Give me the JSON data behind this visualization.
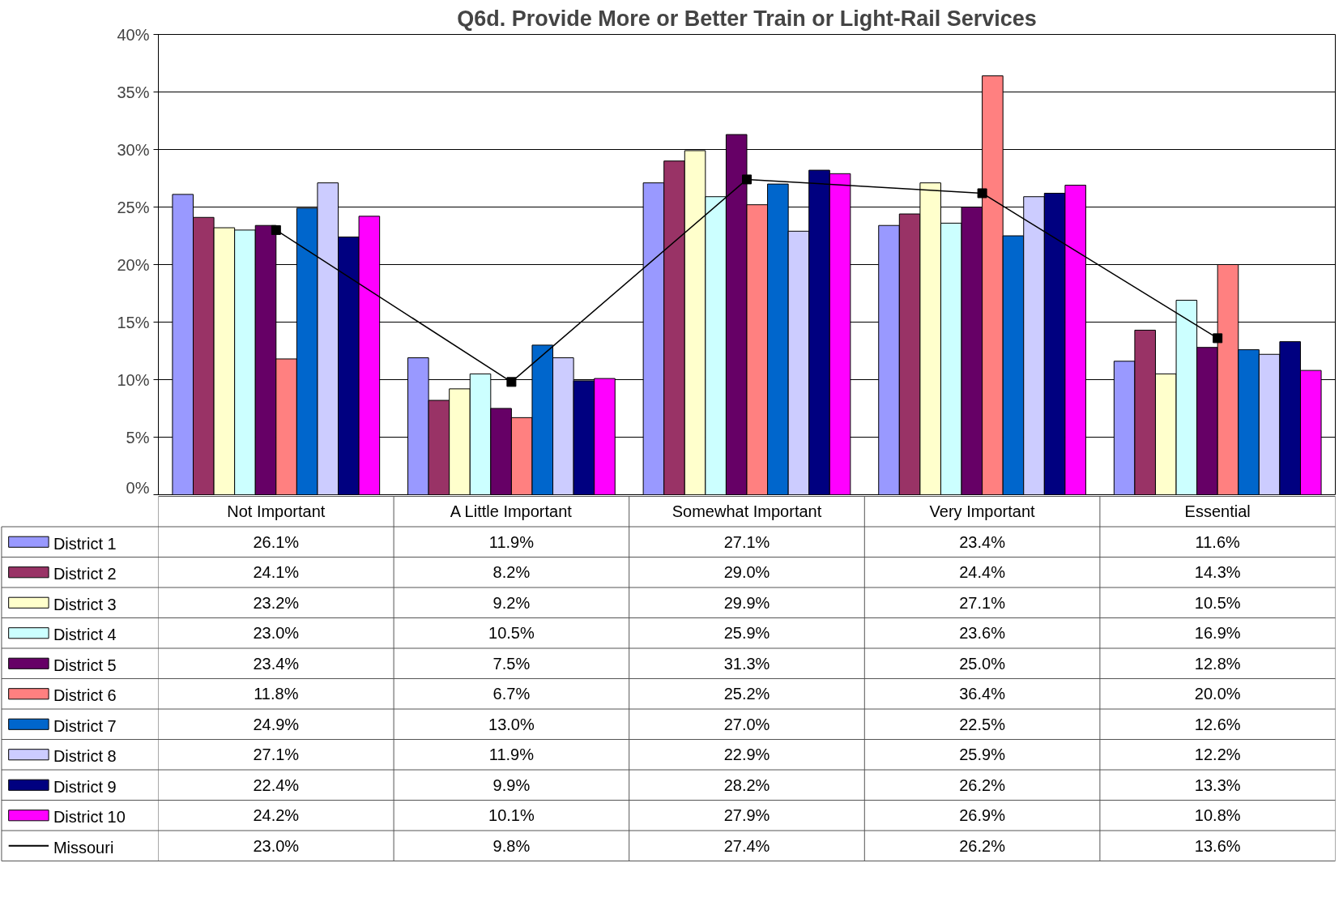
{
  "chart_data": {
    "type": "bar",
    "title": "Q6d. Provide More or Better Train or Light-Rail Services",
    "categories": [
      "Not Important",
      "A Little Important",
      "Somewhat Important",
      "Very Important",
      "Essential"
    ],
    "ylim": [
      0,
      40
    ],
    "yticks": [
      {
        "value": 0,
        "label": "0%"
      },
      {
        "value": 5,
        "label": "5%"
      },
      {
        "value": 10,
        "label": "10%"
      },
      {
        "value": 15,
        "label": "15%"
      },
      {
        "value": 20,
        "label": "20%"
      },
      {
        "value": 25,
        "label": "25%"
      },
      {
        "value": 30,
        "label": "30%"
      },
      {
        "value": 35,
        "label": "35%"
      },
      {
        "value": 40,
        "label": "40%"
      }
    ],
    "grid": "y",
    "legend": "bottom left",
    "series": [
      {
        "name": "District 1",
        "color": "#9999ff",
        "values": [
          26.1,
          11.9,
          27.1,
          23.4,
          11.6
        ],
        "value_labels": [
          "26.1%",
          "11.9%",
          "27.1%",
          "23.4%",
          "11.6%"
        ]
      },
      {
        "name": "District 2",
        "color": "#993366",
        "values": [
          24.1,
          8.2,
          29.0,
          24.4,
          14.3
        ],
        "value_labels": [
          "24.1%",
          "8.2%",
          "29.0%",
          "24.4%",
          "14.3%"
        ]
      },
      {
        "name": "District 3",
        "color": "#ffffcc",
        "values": [
          23.2,
          9.2,
          29.9,
          27.1,
          10.5
        ],
        "value_labels": [
          "23.2%",
          "9.2%",
          "29.9%",
          "27.1%",
          "10.5%"
        ]
      },
      {
        "name": "District 4",
        "color": "#ccffff",
        "values": [
          23.0,
          10.5,
          25.9,
          23.6,
          16.9
        ],
        "value_labels": [
          "23.0%",
          "10.5%",
          "25.9%",
          "23.6%",
          "16.9%"
        ]
      },
      {
        "name": "District 5",
        "color": "#660066",
        "values": [
          23.4,
          7.5,
          31.3,
          25.0,
          12.8
        ],
        "value_labels": [
          "23.4%",
          "7.5%",
          "31.3%",
          "25.0%",
          "12.8%"
        ]
      },
      {
        "name": "District 6",
        "color": "#ff8080",
        "values": [
          11.8,
          6.7,
          25.2,
          36.4,
          20.0
        ],
        "value_labels": [
          "11.8%",
          "6.7%",
          "25.2%",
          "36.4%",
          "20.0%"
        ]
      },
      {
        "name": "District 7",
        "color": "#0066cc",
        "values": [
          24.9,
          13.0,
          27.0,
          22.5,
          12.6
        ],
        "value_labels": [
          "24.9%",
          "13.0%",
          "27.0%",
          "22.5%",
          "12.6%"
        ]
      },
      {
        "name": "District 8",
        "color": "#ccccff",
        "values": [
          27.1,
          11.9,
          22.9,
          25.9,
          12.2
        ],
        "value_labels": [
          "27.1%",
          "11.9%",
          "22.9%",
          "25.9%",
          "12.2%"
        ]
      },
      {
        "name": "District 9",
        "color": "#000080",
        "values": [
          22.4,
          9.9,
          28.2,
          26.2,
          13.3
        ],
        "value_labels": [
          "22.4%",
          "9.9%",
          "28.2%",
          "26.2%",
          "13.3%"
        ]
      },
      {
        "name": "District 10",
        "color": "#ff00ff",
        "values": [
          24.2,
          10.1,
          27.9,
          26.9,
          10.8
        ],
        "value_labels": [
          "24.2%",
          "10.1%",
          "27.9%",
          "26.9%",
          "10.8%"
        ]
      },
      {
        "name": "Missouri",
        "type": "line",
        "color": "#000000",
        "marker": "square",
        "line_style": "solid",
        "values": [
          23.0,
          9.8,
          27.4,
          26.2,
          13.6
        ],
        "value_labels": [
          "23.0%",
          "9.8%",
          "27.4%",
          "26.2%",
          "13.6%"
        ]
      }
    ]
  }
}
